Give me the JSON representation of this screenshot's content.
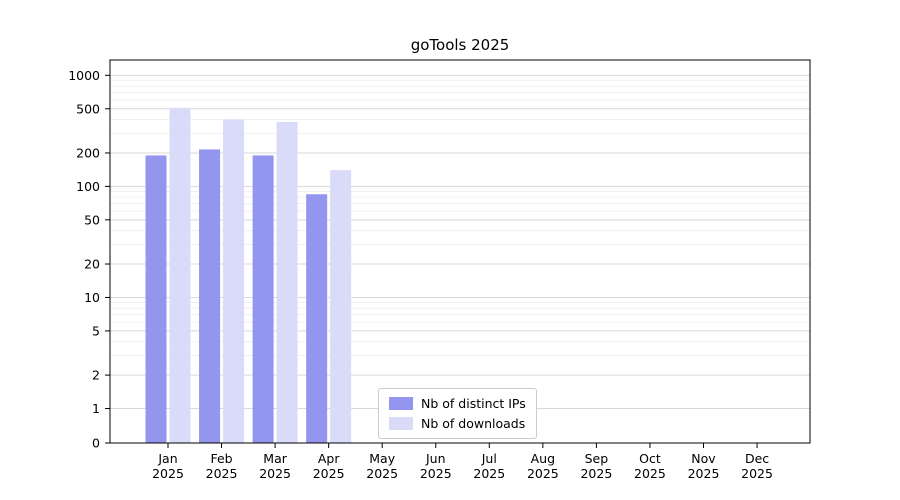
{
  "chart_data": {
    "type": "bar",
    "title": "goTools 2025",
    "categories": [
      "Jan",
      "Feb",
      "Mar",
      "Apr",
      "May",
      "Jun",
      "Jul",
      "Aug",
      "Sep",
      "Oct",
      "Nov",
      "Dec"
    ],
    "category_year": "2025",
    "series": [
      {
        "name": "Nb of distinct IPs",
        "color": "#9495ee",
        "values": [
          190,
          215,
          190,
          85,
          0,
          0,
          0,
          0,
          0,
          0,
          0,
          0
        ]
      },
      {
        "name": "Nb of downloads",
        "color": "#dadbf8",
        "values": [
          510,
          400,
          380,
          140,
          0,
          0,
          0,
          0,
          0,
          0,
          0,
          0
        ]
      }
    ],
    "yscale": "symlog",
    "yticks": [
      0,
      1,
      2,
      5,
      10,
      20,
      50,
      100,
      200,
      500,
      1000
    ],
    "ylim": [
      0,
      1300
    ],
    "grid": true,
    "legend_position": "bottom-center-inside",
    "colors": {
      "axis": "#000000",
      "major_grid": "#d9d9d9",
      "minor_grid": "#f0f0f0",
      "tick_label": "#000000"
    }
  }
}
